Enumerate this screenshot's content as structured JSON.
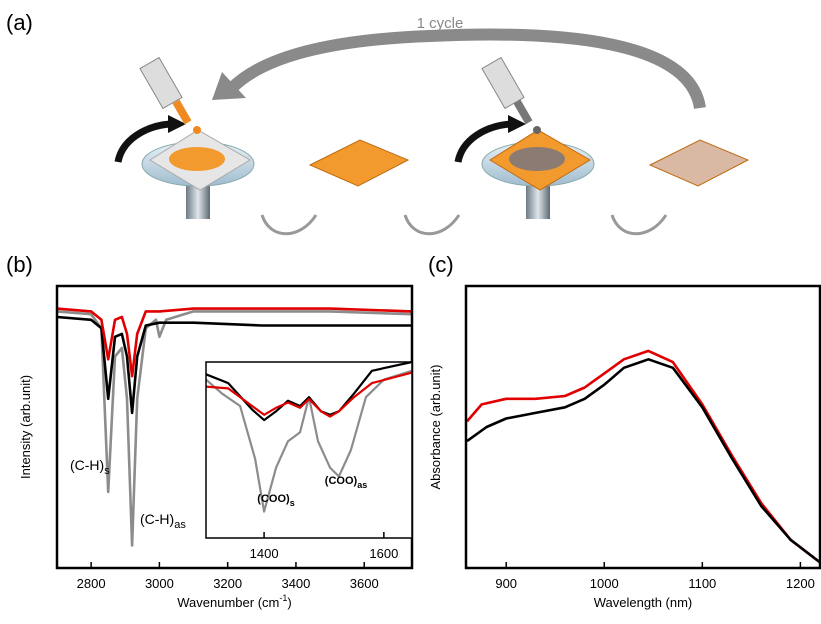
{
  "figure": {
    "panel_labels": [
      "(a)",
      "(b)",
      "(c)"
    ],
    "cycle_label": "1 cycle"
  },
  "chart_data": [
    {
      "type": "line",
      "ylabel": "Intensity (arb.unit)",
      "xlabel": "Wavenumber (cm",
      "xlabel_sup": "-1",
      "xlabel_end": ")",
      "xlim": [
        2700,
        3740
      ],
      "ylim": [
        0,
        1
      ],
      "xticks": [
        2800,
        3000,
        3200,
        3400,
        3600
      ],
      "annotations": [
        {
          "text": "(C-H)",
          "sub": "s"
        },
        {
          "text": "(C-H)",
          "sub": "as"
        }
      ],
      "series": [
        {
          "color": "#8c8c8c",
          "x": [
            2700,
            2800,
            2830,
            2850,
            2870,
            2890,
            2905,
            2920,
            2935,
            2960,
            2990,
            3000,
            3020,
            3100,
            3300,
            3500,
            3740
          ],
          "values": [
            0.91,
            0.9,
            0.85,
            0.27,
            0.75,
            0.78,
            0.6,
            0.08,
            0.6,
            0.85,
            0.88,
            0.82,
            0.88,
            0.91,
            0.91,
            0.91,
            0.9
          ]
        },
        {
          "color": "#000000",
          "x": [
            2700,
            2800,
            2830,
            2850,
            2870,
            2890,
            2905,
            2920,
            2935,
            2960,
            3000,
            3100,
            3300,
            3500,
            3740
          ],
          "values": [
            0.89,
            0.88,
            0.85,
            0.6,
            0.82,
            0.83,
            0.75,
            0.55,
            0.75,
            0.86,
            0.87,
            0.87,
            0.86,
            0.86,
            0.86
          ]
        },
        {
          "color": "#e00000",
          "x": [
            2700,
            2800,
            2830,
            2850,
            2870,
            2890,
            2905,
            2920,
            2935,
            2960,
            3000,
            3100,
            3300,
            3500,
            3740
          ],
          "values": [
            0.92,
            0.91,
            0.88,
            0.74,
            0.88,
            0.89,
            0.83,
            0.68,
            0.83,
            0.91,
            0.91,
            0.92,
            0.92,
            0.92,
            0.91
          ]
        }
      ]
    },
    {
      "type": "line",
      "xlim": [
        1303,
        1647
      ],
      "ylim": [
        0,
        1
      ],
      "xticks": [
        1400,
        1600
      ],
      "annotations": [
        {
          "text": "(COO)",
          "sub": "s"
        },
        {
          "text": "(COO)",
          "sub": "as"
        }
      ],
      "series": [
        {
          "color": "#8c8c8c",
          "x": [
            1303,
            1330,
            1360,
            1385,
            1400,
            1420,
            1440,
            1460,
            1475,
            1490,
            1510,
            1525,
            1545,
            1570,
            1600,
            1647
          ],
          "values": [
            0.9,
            0.82,
            0.75,
            0.45,
            0.15,
            0.4,
            0.55,
            0.6,
            0.8,
            0.55,
            0.4,
            0.35,
            0.5,
            0.8,
            0.9,
            0.95
          ]
        },
        {
          "color": "#000000",
          "x": [
            1303,
            1340,
            1380,
            1400,
            1420,
            1440,
            1460,
            1475,
            1495,
            1510,
            1525,
            1550,
            1580,
            1647
          ],
          "values": [
            0.93,
            0.88,
            0.73,
            0.67,
            0.72,
            0.78,
            0.75,
            0.8,
            0.72,
            0.7,
            0.72,
            0.82,
            0.95,
            1.0
          ]
        },
        {
          "color": "#e00000",
          "x": [
            1303,
            1340,
            1380,
            1400,
            1420,
            1440,
            1460,
            1475,
            1495,
            1510,
            1525,
            1550,
            1580,
            1647
          ],
          "values": [
            0.86,
            0.85,
            0.75,
            0.7,
            0.74,
            0.77,
            0.74,
            0.79,
            0.72,
            0.69,
            0.72,
            0.8,
            0.88,
            0.94
          ]
        }
      ]
    },
    {
      "type": "line",
      "ylabel": "Absorbance (arb.unit)",
      "xlabel": "Wavelength (nm)",
      "xlim": [
        859,
        1220
      ],
      "ylim": [
        0,
        1
      ],
      "xticks": [
        900,
        1000,
        1100,
        1200
      ],
      "series": [
        {
          "color": "#e00000",
          "x": [
            860,
            875,
            900,
            930,
            960,
            980,
            1000,
            1020,
            1045,
            1070,
            1100,
            1130,
            1160,
            1190,
            1220
          ],
          "values": [
            0.52,
            0.58,
            0.6,
            0.6,
            0.61,
            0.64,
            0.69,
            0.74,
            0.77,
            0.73,
            0.58,
            0.4,
            0.23,
            0.1,
            0.02
          ]
        },
        {
          "color": "#000000",
          "x": [
            860,
            880,
            900,
            930,
            960,
            980,
            1000,
            1020,
            1045,
            1070,
            1100,
            1130,
            1160,
            1190,
            1220
          ],
          "values": [
            0.45,
            0.5,
            0.53,
            0.55,
            0.57,
            0.6,
            0.65,
            0.71,
            0.74,
            0.71,
            0.57,
            0.39,
            0.22,
            0.1,
            0.02
          ]
        }
      ]
    }
  ]
}
